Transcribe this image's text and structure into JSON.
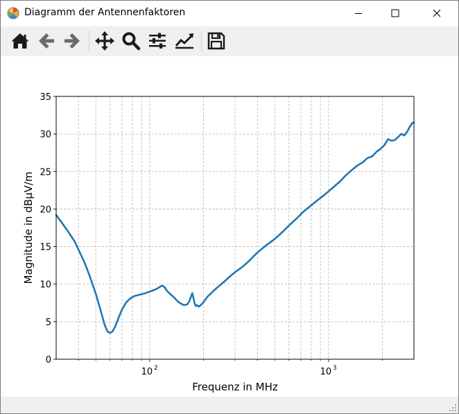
{
  "window": {
    "title": "Diagramm der Antennenfaktoren",
    "app_icon": "matplotlib-icon",
    "controls": [
      "minimize-icon",
      "maximize-icon",
      "close-icon"
    ]
  },
  "toolbar": {
    "buttons": [
      "home-icon",
      "back-arrow-icon",
      "forward-arrow-icon",
      "pan-icon",
      "zoom-icon",
      "subplots-config-icon",
      "edit-axes-icon",
      "save-icon"
    ]
  },
  "chart_data": {
    "type": "line",
    "title": "",
    "xlabel": "Frequenz in MHz",
    "ylabel": "Magnitude in dBµV/m",
    "xscale": "log",
    "xlim": [
      30,
      3000
    ],
    "ylim": [
      0,
      35
    ],
    "yticks": [
      "0",
      "5",
      "10",
      "15",
      "20",
      "25",
      "30",
      "35"
    ],
    "xtick_base": "10",
    "xticks": [
      {
        "value": 100,
        "exponent": "2"
      },
      {
        "value": 1000,
        "exponent": "3"
      }
    ],
    "grid": true,
    "grid_style": "dashed",
    "legend": "none",
    "line_color": "#1f77b4",
    "series": [
      {
        "x": [
          30,
          32,
          35,
          38,
          40,
          43,
          46,
          50,
          53,
          56,
          58,
          60,
          62,
          64,
          67,
          70,
          74,
          78,
          82,
          88,
          95,
          100,
          105,
          110,
          115,
          118,
          121,
          125,
          130,
          137,
          145,
          155,
          162,
          167,
          173,
          177,
          179,
          181,
          184,
          188,
          193,
          200,
          210,
          225,
          240,
          260,
          280,
          300,
          330,
          360,
          400,
          450,
          500,
          550,
          600,
          660,
          720,
          800,
          880,
          960,
          1050,
          1150,
          1250,
          1350,
          1450,
          1550,
          1650,
          1750,
          1850,
          1950,
          2050,
          2150,
          2250,
          2350,
          2450,
          2550,
          2650,
          2750,
          2850,
          2950,
          3000
        ],
        "y": [
          19.2,
          18.3,
          17.0,
          15.7,
          14.6,
          13.0,
          11.2,
          8.7,
          6.6,
          4.6,
          3.7,
          3.5,
          3.7,
          4.3,
          5.5,
          6.6,
          7.6,
          8.1,
          8.4,
          8.6,
          8.8,
          9.0,
          9.2,
          9.4,
          9.7,
          9.8,
          9.6,
          9.1,
          8.7,
          8.2,
          7.6,
          7.2,
          7.3,
          7.8,
          8.8,
          7.8,
          7.3,
          7.1,
          7.2,
          7.0,
          7.2,
          7.6,
          8.3,
          9.0,
          9.6,
          10.3,
          11.0,
          11.6,
          12.3,
          13.1,
          14.2,
          15.2,
          16.0,
          16.9,
          17.8,
          18.7,
          19.6,
          20.5,
          21.3,
          22.0,
          22.8,
          23.6,
          24.5,
          25.2,
          25.8,
          26.2,
          26.8,
          27.0,
          27.6,
          28.0,
          28.5,
          29.3,
          29.1,
          29.2,
          29.6,
          30.0,
          29.8,
          30.3,
          31.0,
          31.5,
          31.5
        ]
      }
    ]
  }
}
